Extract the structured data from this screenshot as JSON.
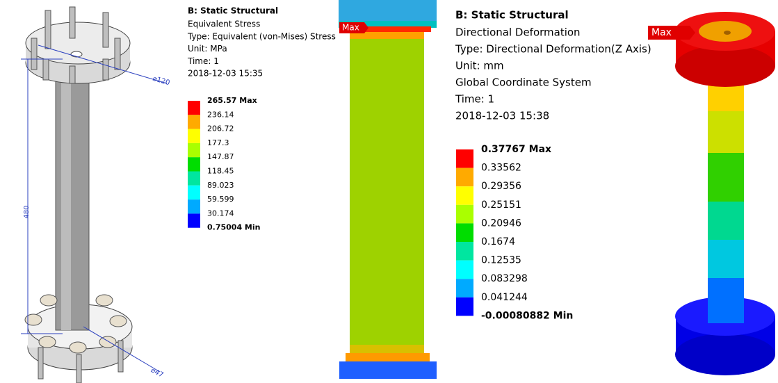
{
  "drawing": {
    "dimensions": [
      "480",
      "⌀120",
      "⌀47"
    ]
  },
  "stress": {
    "title": "B: Static Structural",
    "lines": [
      "Equivalent Stress",
      "Type: Equivalent (von-Mises) Stress",
      "Unit: MPa",
      "Time: 1",
      "2018-12-03 15:35"
    ],
    "legend": [
      "265.57 Max",
      "236.14",
      "206.72",
      "177.3",
      "147.87",
      "118.45",
      "89.023",
      "59.599",
      "30.174",
      "0.75004 Min"
    ],
    "tag": "Max"
  },
  "deformation": {
    "title": "B: Static Structural",
    "lines": [
      "Directional Deformation",
      "Type: Directional Deformation(Z Axis)",
      "Unit: mm",
      "Global Coordinate System",
      "Time: 1",
      "2018-12-03 15:38"
    ],
    "legend": [
      "0.37767 Max",
      "0.33562",
      "0.29356",
      "0.25151",
      "0.20946",
      "0.1674",
      "0.12535",
      "0.083298",
      "0.041244",
      "-0.00080882 Min"
    ],
    "tag": "Max"
  }
}
